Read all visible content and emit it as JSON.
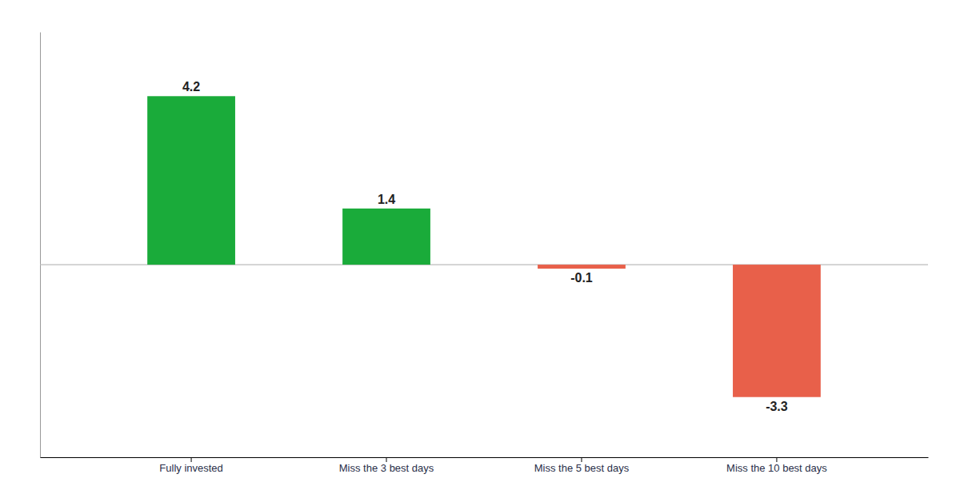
{
  "chart_data": {
    "type": "bar",
    "categories": [
      "Fully invested",
      "Miss the 3 best days",
      "Miss the 5 best days",
      "Miss the 10 best days"
    ],
    "values": [
      4.2,
      1.4,
      -0.1,
      -3.3
    ],
    "colors": [
      "#1aab3a",
      "#1aab3a",
      "#e8604a",
      "#e8604a"
    ],
    "ylim": [
      -4.8,
      5.8
    ],
    "data_labels": true,
    "tick_labels": "x"
  }
}
